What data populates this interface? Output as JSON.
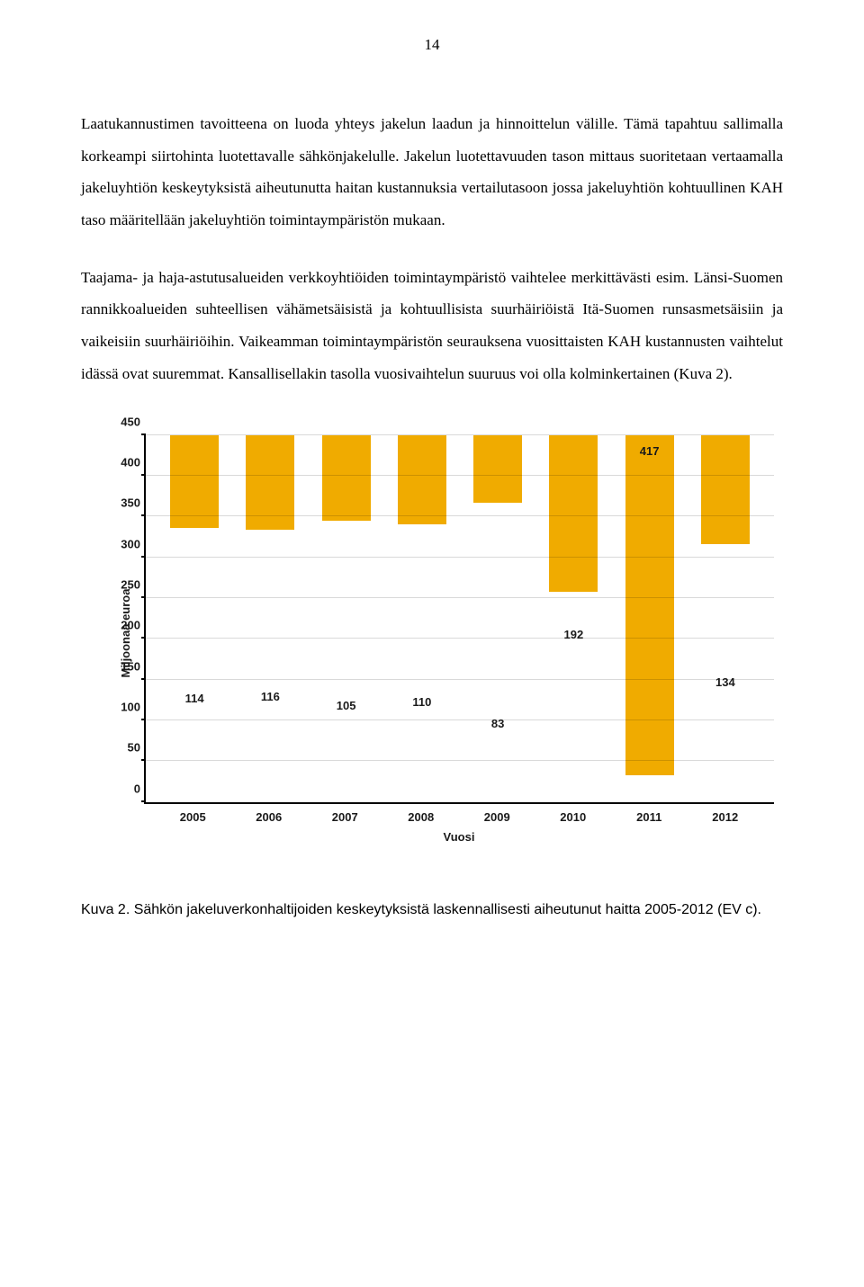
{
  "page_number": "14",
  "paragraphs": {
    "p1": "Laatukannustimen tavoitteena on luoda yhteys jakelun laadun ja hinnoittelun välille. Tämä tapahtuu sallimalla korkeampi siirtohinta luotettavalle sähkönjakelulle. Jakelun luotettavuuden tason mittaus suoritetaan vertaamalla jakeluyhtiön keskeytyksistä aiheutunutta haitan kustannuksia vertailutasoon jossa jakeluyhtiön kohtuullinen KAH taso määritellään jakeluyhtiön toimintaympäristön mukaan.",
    "p2": "Taajama- ja haja-astutusalueiden verkkoyhtiöiden toimintaympäristö vaihtelee merkittävästi esim. Länsi-Suomen rannikkoalueiden suhteellisen vähämetsäisistä ja kohtuullisista suurhäiriöistä Itä-Suomen runsasmetsäisiin ja vaikeisiin suurhäiriöihin. Vaikeamman toimintaympäristön seurauksena vuosittaisten KAH kustannusten vaihtelut idässä ovat suuremmat. Kansallisellakin tasolla vuosivaihtelun suuruus voi olla kolminkertainen (Kuva 2)."
  },
  "chart": {
    "type": "bar",
    "ylabel": "Miljoonaa euroa",
    "xlabel": "Vuosi",
    "ylim_max": 450,
    "ytick_step": 50,
    "categories": [
      "2005",
      "2006",
      "2007",
      "2008",
      "2009",
      "2010",
      "2011",
      "2012"
    ],
    "values": [
      114,
      116,
      105,
      110,
      83,
      192,
      417,
      134
    ],
    "bar_color": "#f0ab00",
    "grid_color": "#e6e6e6",
    "text_color": "#1a1a1a"
  },
  "caption": "Kuva 2. Sähkön jakeluverkonhaltijoiden keskeytyksistä laskennallisesti aiheutunut haitta 2005-2012 (EV c)."
}
